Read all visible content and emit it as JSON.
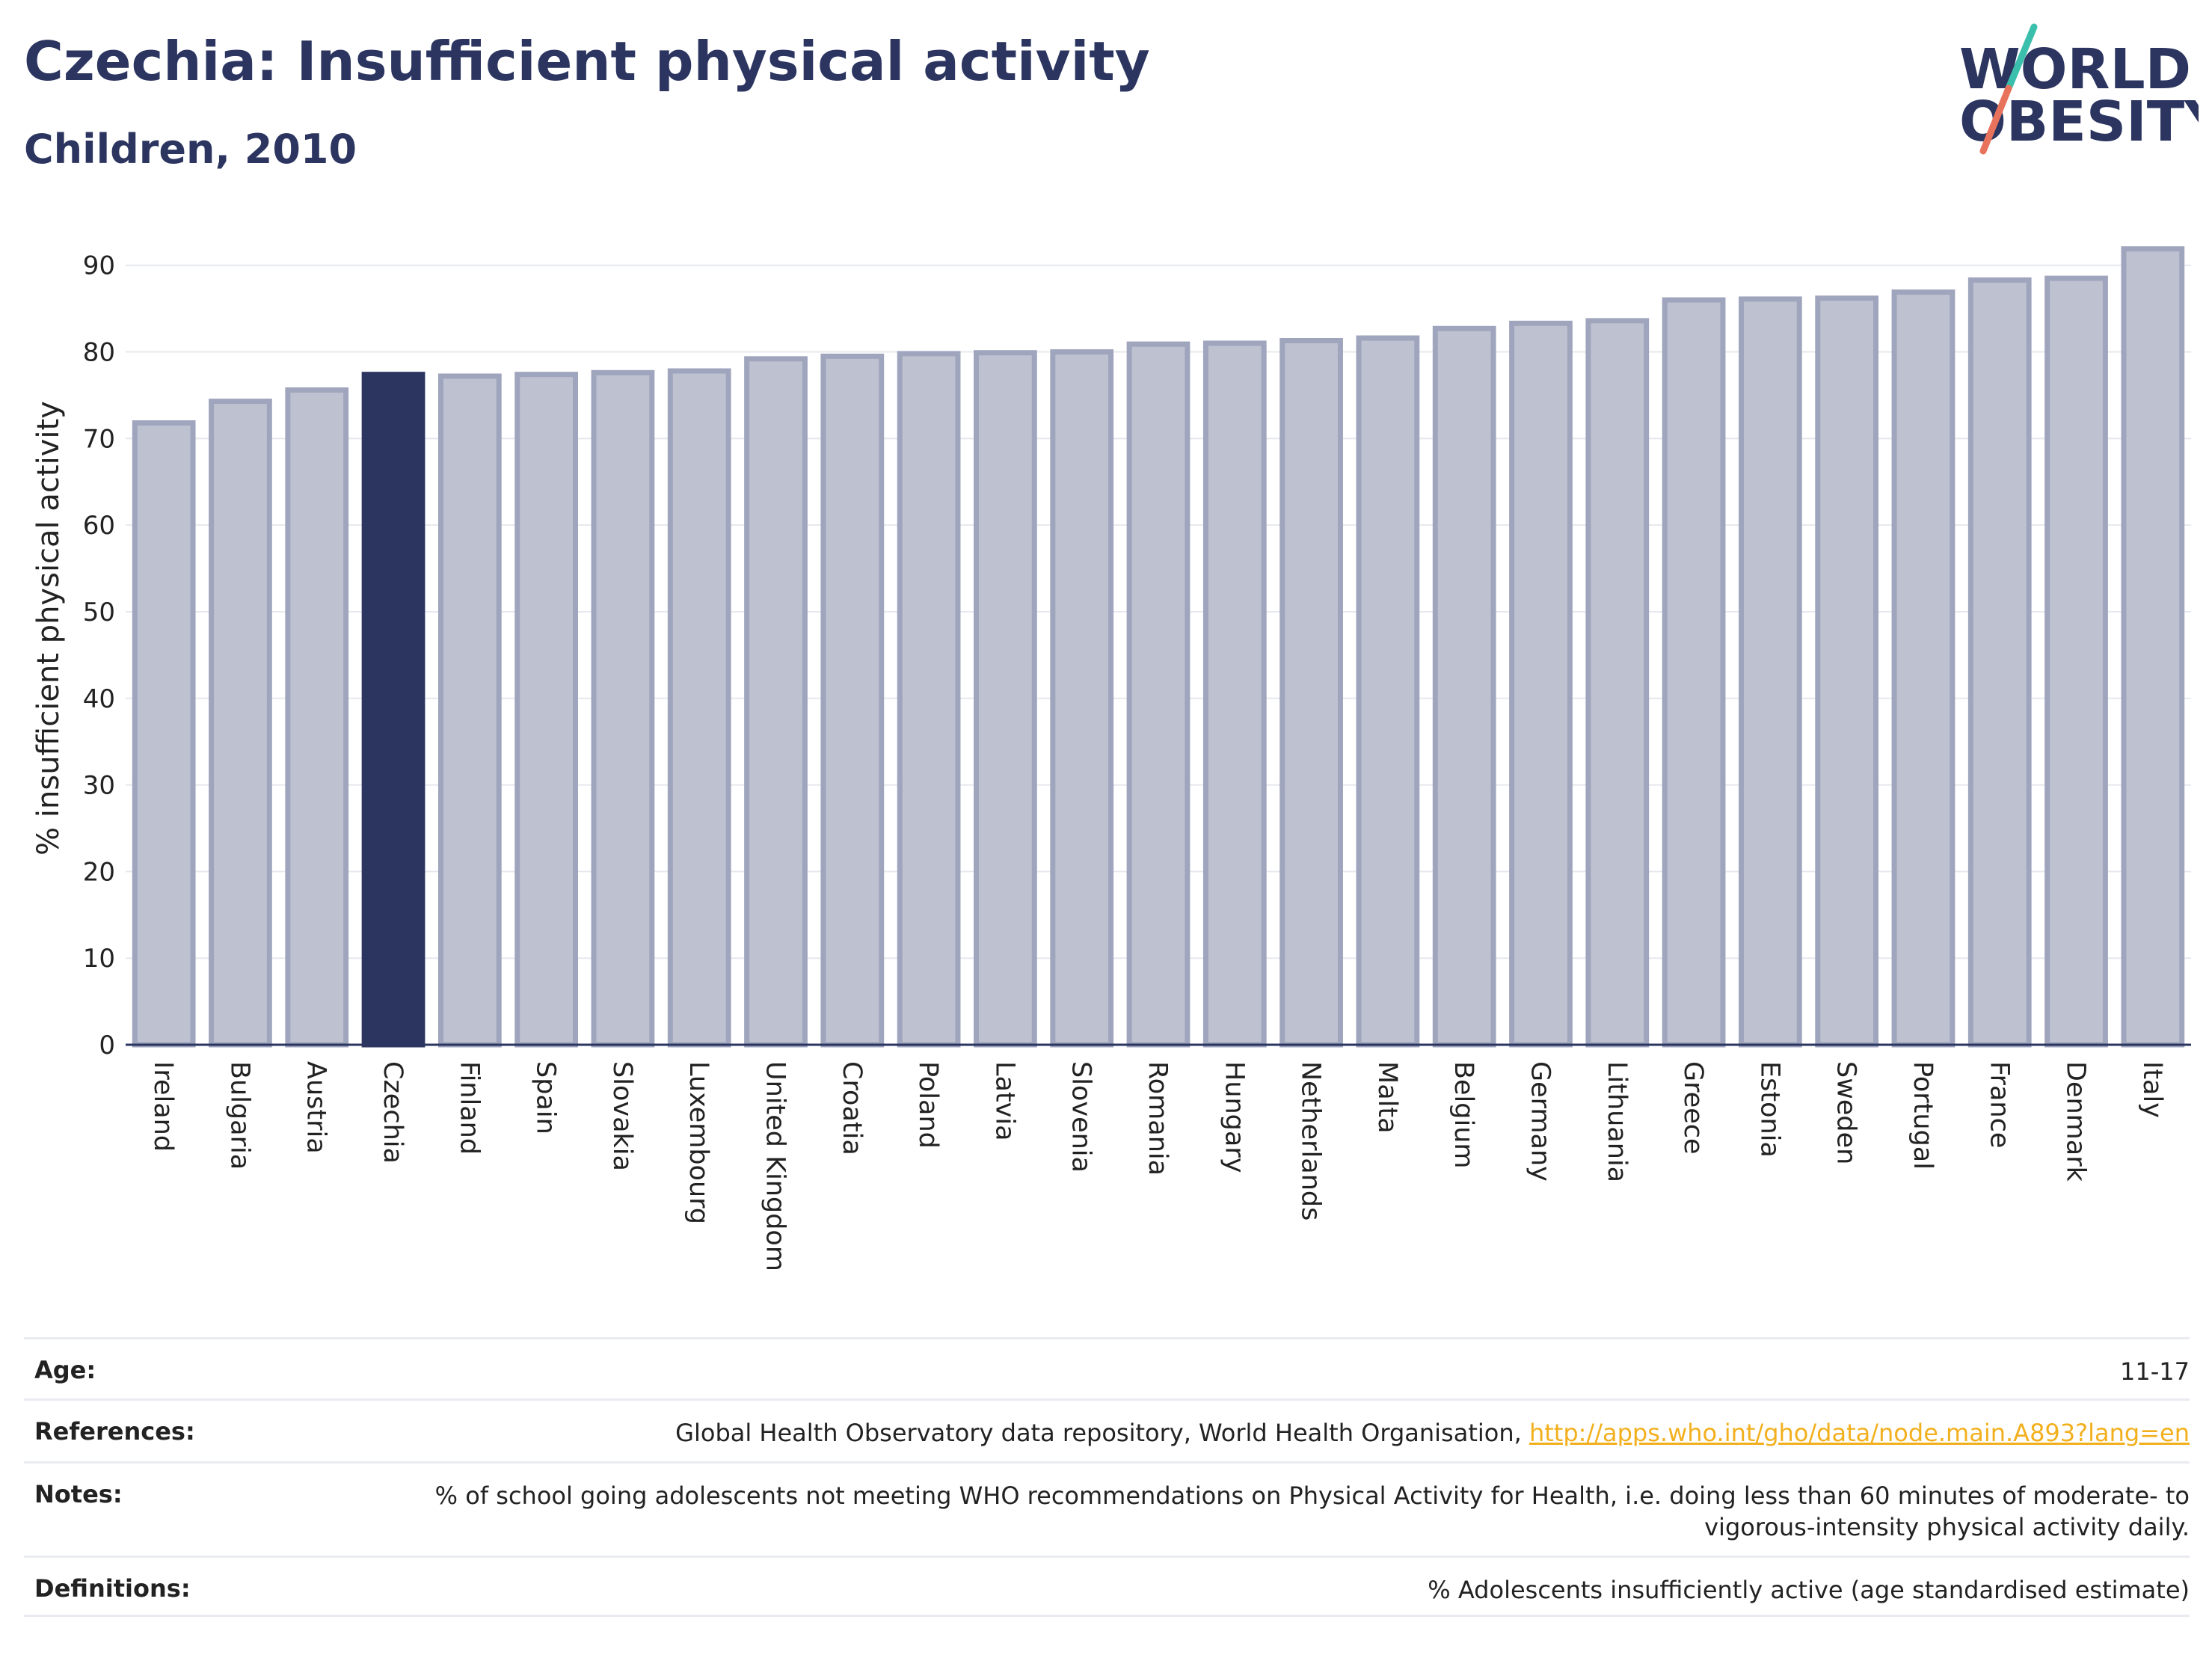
{
  "header": {
    "title": "Czechia: Insufficient physical activity",
    "subtitle": "Children, 2010"
  },
  "logo": {
    "line1": "WORLD",
    "line2": "OBESITY"
  },
  "chart_data": {
    "type": "bar",
    "title": "Czechia: Insufficient physical activity",
    "subtitle": "Children, 2010",
    "ylabel": "% insufficient physical activity",
    "xlabel": "",
    "ylim": [
      0,
      93
    ],
    "yticks": [
      0,
      10,
      20,
      30,
      40,
      50,
      60,
      70,
      80,
      90
    ],
    "grid": true,
    "highlight": "Czechia",
    "highlight_color": "#2b3560",
    "bar_color": "#bec1d0",
    "bar_edge_color": "#9fa5bd",
    "categories": [
      "Ireland",
      "Bulgaria",
      "Austria",
      "Czechia",
      "Finland",
      "Spain",
      "Slovakia",
      "Luxembourg",
      "United Kingdom",
      "Croatia",
      "Poland",
      "Latvia",
      "Slovenia",
      "Romania",
      "Hungary",
      "Netherlands",
      "Malta",
      "Belgium",
      "Germany",
      "Lithuania",
      "Greece",
      "Estonia",
      "Sweden",
      "Portugal",
      "France",
      "Denmark",
      "Italy"
    ],
    "values": [
      71.8,
      74.3,
      75.6,
      77.4,
      77.2,
      77.4,
      77.6,
      77.8,
      79.2,
      79.5,
      79.8,
      79.9,
      80.0,
      80.9,
      81.0,
      81.3,
      81.6,
      82.7,
      83.3,
      83.6,
      86.0,
      86.1,
      86.2,
      86.9,
      88.3,
      88.5,
      91.9
    ]
  },
  "meta": {
    "age_label": "Age:",
    "age_value": "11-17",
    "references_label": "References:",
    "references_text": "Global Health Observatory data repository, World Health Organisation,",
    "references_link": "http://apps.who.int/gho/data/node.main.A893?lang=en",
    "notes_label": "Notes:",
    "notes_value": "% of school going adolescents not meeting WHO recommendations on Physical Activity for Health, i.e. doing less than 60 minutes of moderate- to vigorous-intensity physical activity daily.",
    "definitions_label": "Definitions:",
    "definitions_value": "% Adolescents insufficiently active (age standardised estimate)"
  }
}
